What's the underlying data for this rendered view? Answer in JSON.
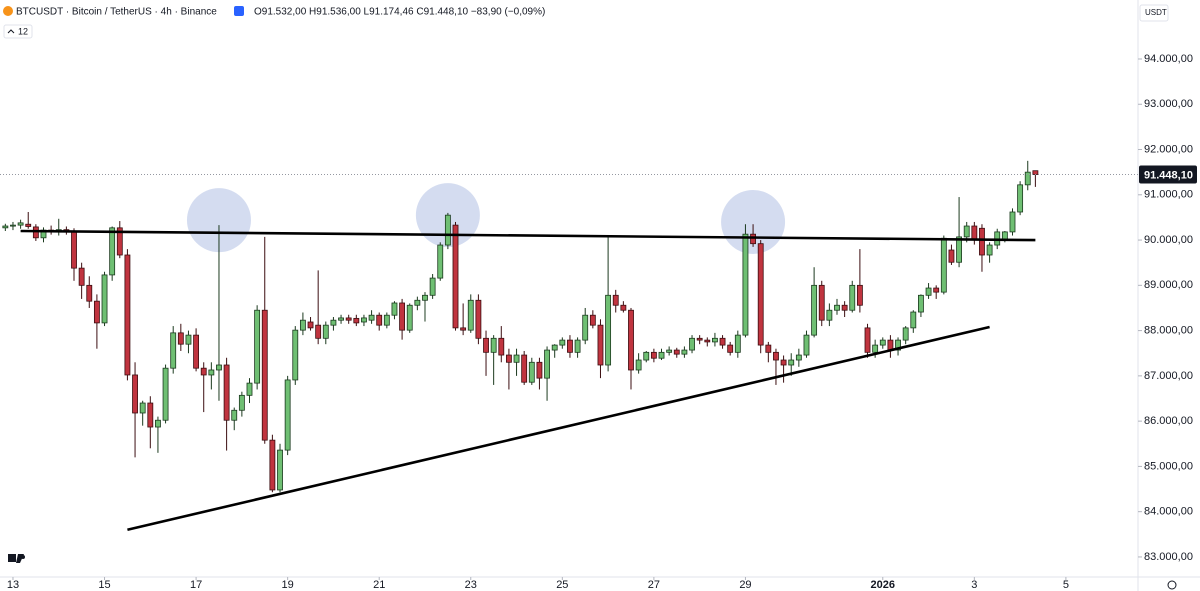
{
  "header": {
    "symbol": "BTCUSDT · Bitcoin / TetherUS · 4h · Binance",
    "ohlc": "O91.532,00 H91.536,00 L91.174,46 C91.448,10 −83,90 (−0,09%)",
    "indicator": "12",
    "currency": "USDT"
  },
  "chart_data": {
    "type": "candlestick",
    "up_color": "#6fbf73",
    "down_color": "#c0343f",
    "xlim": [
      -1.7,
      147.45
    ],
    "ylim": [
      82557,
      95303
    ],
    "xticks": [
      {
        "value": 0,
        "label": "13"
      },
      {
        "value": 12,
        "label": "15"
      },
      {
        "value": 24,
        "label": "17"
      },
      {
        "value": 36,
        "label": "19"
      },
      {
        "value": 48,
        "label": "21"
      },
      {
        "value": 60,
        "label": "23"
      },
      {
        "value": 72,
        "label": "25"
      },
      {
        "value": 84,
        "label": "27"
      },
      {
        "value": 96,
        "label": "29"
      },
      {
        "value": 114,
        "label": "2026"
      },
      {
        "value": 126,
        "label": "3"
      },
      {
        "value": 138,
        "label": "5"
      }
    ],
    "yticks": [
      {
        "value": 83000,
        "label": "83.000,00"
      },
      {
        "value": 84000,
        "label": "84.000,00"
      },
      {
        "value": 85000,
        "label": "85.000,00"
      },
      {
        "value": 86000,
        "label": "86.000,00"
      },
      {
        "value": 87000,
        "label": "87.000,00"
      },
      {
        "value": 88000,
        "label": "88.000,00"
      },
      {
        "value": 89000,
        "label": "89.000,00"
      },
      {
        "value": 90000,
        "label": "90.000,00"
      },
      {
        "value": 91000,
        "label": "91.000,00"
      },
      {
        "value": 92000,
        "label": "92.000,00"
      },
      {
        "value": 93000,
        "label": "93.000,00"
      },
      {
        "value": 94000,
        "label": "94.000,00"
      }
    ],
    "x_start": -1,
    "ohlc": [
      [
        90270,
        90360,
        90200,
        90310
      ],
      [
        90310,
        90400,
        90220,
        90330
      ],
      [
        90330,
        90450,
        90250,
        90380
      ],
      [
        90350,
        90620,
        90250,
        90300
      ],
      [
        90290,
        90350,
        89980,
        90050
      ],
      [
        90050,
        90280,
        89950,
        90220
      ],
      [
        90220,
        90320,
        90120,
        90200
      ],
      [
        90200,
        90470,
        90100,
        90230
      ],
      [
        90230,
        90300,
        90120,
        90200
      ],
      [
        90200,
        90260,
        89100,
        89380
      ],
      [
        89380,
        89500,
        88700,
        89000
      ],
      [
        89000,
        89200,
        88500,
        88650
      ],
      [
        88650,
        88800,
        87600,
        88170
      ],
      [
        88170,
        89300,
        88100,
        89230
      ],
      [
        89230,
        90300,
        89100,
        90270
      ],
      [
        90270,
        90420,
        89600,
        89670
      ],
      [
        89670,
        89800,
        86900,
        87020
      ],
      [
        87020,
        87300,
        85200,
        86180
      ],
      [
        86180,
        86450,
        85900,
        86400
      ],
      [
        86400,
        86550,
        85400,
        85870
      ],
      [
        85870,
        86100,
        85300,
        86020
      ],
      [
        86020,
        87250,
        85950,
        87170
      ],
      [
        87170,
        88100,
        87050,
        87950
      ],
      [
        87950,
        88150,
        87550,
        87700
      ],
      [
        87700,
        88000,
        87500,
        87900
      ],
      [
        87900,
        88050,
        87100,
        87170
      ],
      [
        87170,
        87300,
        86200,
        87020
      ],
      [
        87020,
        87300,
        86700,
        87130
      ],
      [
        87130,
        90330,
        86450,
        87240
      ],
      [
        87240,
        87400,
        85350,
        86020
      ],
      [
        86020,
        86300,
        85800,
        86240
      ],
      [
        86240,
        86650,
        86100,
        86570
      ],
      [
        86570,
        86950,
        86400,
        86840
      ],
      [
        86840,
        88560,
        86700,
        88450
      ],
      [
        88450,
        90070,
        85500,
        85580
      ],
      [
        85580,
        85700,
        84430,
        84480
      ],
      [
        84480,
        85500,
        84430,
        85360
      ],
      [
        85360,
        87000,
        85250,
        86910
      ],
      [
        86910,
        88100,
        86800,
        88010
      ],
      [
        88010,
        88400,
        87900,
        88230
      ],
      [
        88190,
        88300,
        88000,
        88060
      ],
      [
        88120,
        89330,
        87700,
        87830
      ],
      [
        87830,
        88200,
        87700,
        88120
      ],
      [
        88120,
        88300,
        88000,
        88230
      ],
      [
        88230,
        88350,
        88150,
        88280
      ],
      [
        88280,
        88350,
        88150,
        88230
      ],
      [
        88270,
        88350,
        88100,
        88170
      ],
      [
        88190,
        88350,
        88100,
        88280
      ],
      [
        88230,
        88450,
        88150,
        88340
      ],
      [
        88340,
        88400,
        88000,
        88120
      ],
      [
        88120,
        88400,
        88050,
        88340
      ],
      [
        88340,
        88650,
        88250,
        88610
      ],
      [
        88610,
        88700,
        87800,
        88010
      ],
      [
        88010,
        88600,
        87950,
        88560
      ],
      [
        88560,
        88750,
        88450,
        88670
      ],
      [
        88670,
        88850,
        88200,
        88780
      ],
      [
        88780,
        89250,
        88700,
        89160
      ],
      [
        89160,
        89950,
        89100,
        89890
      ],
      [
        89890,
        90600,
        89800,
        90550
      ],
      [
        90330,
        90400,
        88000,
        88060
      ],
      [
        88060,
        88600,
        87900,
        88010
      ],
      [
        88010,
        88800,
        87950,
        88670
      ],
      [
        88670,
        88800,
        87700,
        87830
      ],
      [
        87830,
        88000,
        87000,
        87520
      ],
      [
        87520,
        87900,
        86800,
        87830
      ],
      [
        87830,
        88100,
        87300,
        87460
      ],
      [
        87460,
        87600,
        86700,
        87300
      ],
      [
        87300,
        87600,
        87000,
        87460
      ],
      [
        87460,
        87550,
        86800,
        86860
      ],
      [
        86860,
        87400,
        86800,
        87300
      ],
      [
        87300,
        87400,
        86700,
        86950
      ],
      [
        86950,
        87650,
        86450,
        87570
      ],
      [
        87570,
        87700,
        87400,
        87680
      ],
      [
        87680,
        87850,
        87600,
        87790
      ],
      [
        87790,
        87900,
        87400,
        87520
      ],
      [
        87520,
        87850,
        87400,
        87790
      ],
      [
        87790,
        88500,
        87700,
        88340
      ],
      [
        88340,
        88450,
        88050,
        88120
      ],
      [
        88120,
        88250,
        86950,
        87240
      ],
      [
        87240,
        90100,
        87100,
        88780
      ],
      [
        88780,
        88900,
        88400,
        88560
      ],
      [
        88560,
        88650,
        88400,
        88450
      ],
      [
        88450,
        88500,
        86700,
        87130
      ],
      [
        87130,
        87500,
        87050,
        87350
      ],
      [
        87350,
        87550,
        87300,
        87520
      ],
      [
        87520,
        87600,
        87300,
        87390
      ],
      [
        87390,
        87600,
        87350,
        87520
      ],
      [
        87520,
        87650,
        87450,
        87570
      ],
      [
        87570,
        87620,
        87400,
        87480
      ],
      [
        87480,
        87650,
        87400,
        87570
      ],
      [
        87570,
        87900,
        87500,
        87830
      ],
      [
        87830,
        87900,
        87700,
        87790
      ],
      [
        87790,
        87850,
        87650,
        87750
      ],
      [
        87750,
        87950,
        87650,
        87830
      ],
      [
        87830,
        87900,
        87600,
        87680
      ],
      [
        87680,
        87750,
        87450,
        87520
      ],
      [
        87520,
        88000,
        87400,
        87900
      ],
      [
        87900,
        90350,
        87850,
        90130
      ],
      [
        90130,
        90350,
        89850,
        89920
      ],
      [
        89920,
        90000,
        87500,
        87680
      ],
      [
        87680,
        87750,
        87300,
        87520
      ],
      [
        87520,
        87600,
        86800,
        87350
      ],
      [
        87350,
        87450,
        86850,
        87240
      ],
      [
        87240,
        87500,
        87000,
        87350
      ],
      [
        87350,
        87600,
        87200,
        87460
      ],
      [
        87460,
        88000,
        87400,
        87900
      ],
      [
        87900,
        89400,
        87850,
        89000
      ],
      [
        89000,
        89100,
        88100,
        88230
      ],
      [
        88230,
        88600,
        88100,
        88450
      ],
      [
        88450,
        88700,
        88350,
        88560
      ],
      [
        88560,
        88650,
        88300,
        88450
      ],
      [
        88450,
        89100,
        88400,
        89000
      ],
      [
        89000,
        89800,
        88400,
        88560
      ],
      [
        88060,
        88150,
        87400,
        87520
      ],
      [
        87520,
        87800,
        87400,
        87680
      ],
      [
        87680,
        87850,
        87600,
        87790
      ],
      [
        87790,
        87900,
        87400,
        87570
      ],
      [
        87570,
        87850,
        87450,
        87790
      ],
      [
        87790,
        88100,
        87700,
        88060
      ],
      [
        88060,
        88450,
        87950,
        88410
      ],
      [
        88410,
        88800,
        88300,
        88780
      ],
      [
        88780,
        89050,
        88700,
        88940
      ],
      [
        88940,
        89000,
        88700,
        88850
      ],
      [
        88850,
        90100,
        88800,
        90040
      ],
      [
        89780,
        89900,
        89450,
        89510
      ],
      [
        89510,
        90950,
        89400,
        90070
      ],
      [
        90070,
        90400,
        89950,
        90310
      ],
      [
        90310,
        90400,
        89900,
        90000
      ],
      [
        90260,
        90350,
        89300,
        89670
      ],
      [
        89670,
        89950,
        89500,
        89890
      ],
      [
        89890,
        90250,
        89800,
        90180
      ],
      [
        90000,
        90200,
        89950,
        90180
      ],
      [
        90180,
        90700,
        90100,
        90620
      ],
      [
        90620,
        91300,
        90550,
        91220
      ],
      [
        91220,
        91750,
        91100,
        91500
      ],
      [
        91532,
        91536,
        91174.46,
        91448.1
      ]
    ],
    "last_label": "91.448,10",
    "trendlines": [
      {
        "x": [
          1,
          134
        ],
        "y": [
          90200,
          90000
        ]
      },
      {
        "x": [
          15,
          128
        ],
        "y": [
          83600,
          88080
        ]
      }
    ],
    "highlights": [
      {
        "x": 27,
        "y": 90440
      },
      {
        "x": 57,
        "y": 90550
      },
      {
        "x": 97,
        "y": 90400
      }
    ]
  }
}
